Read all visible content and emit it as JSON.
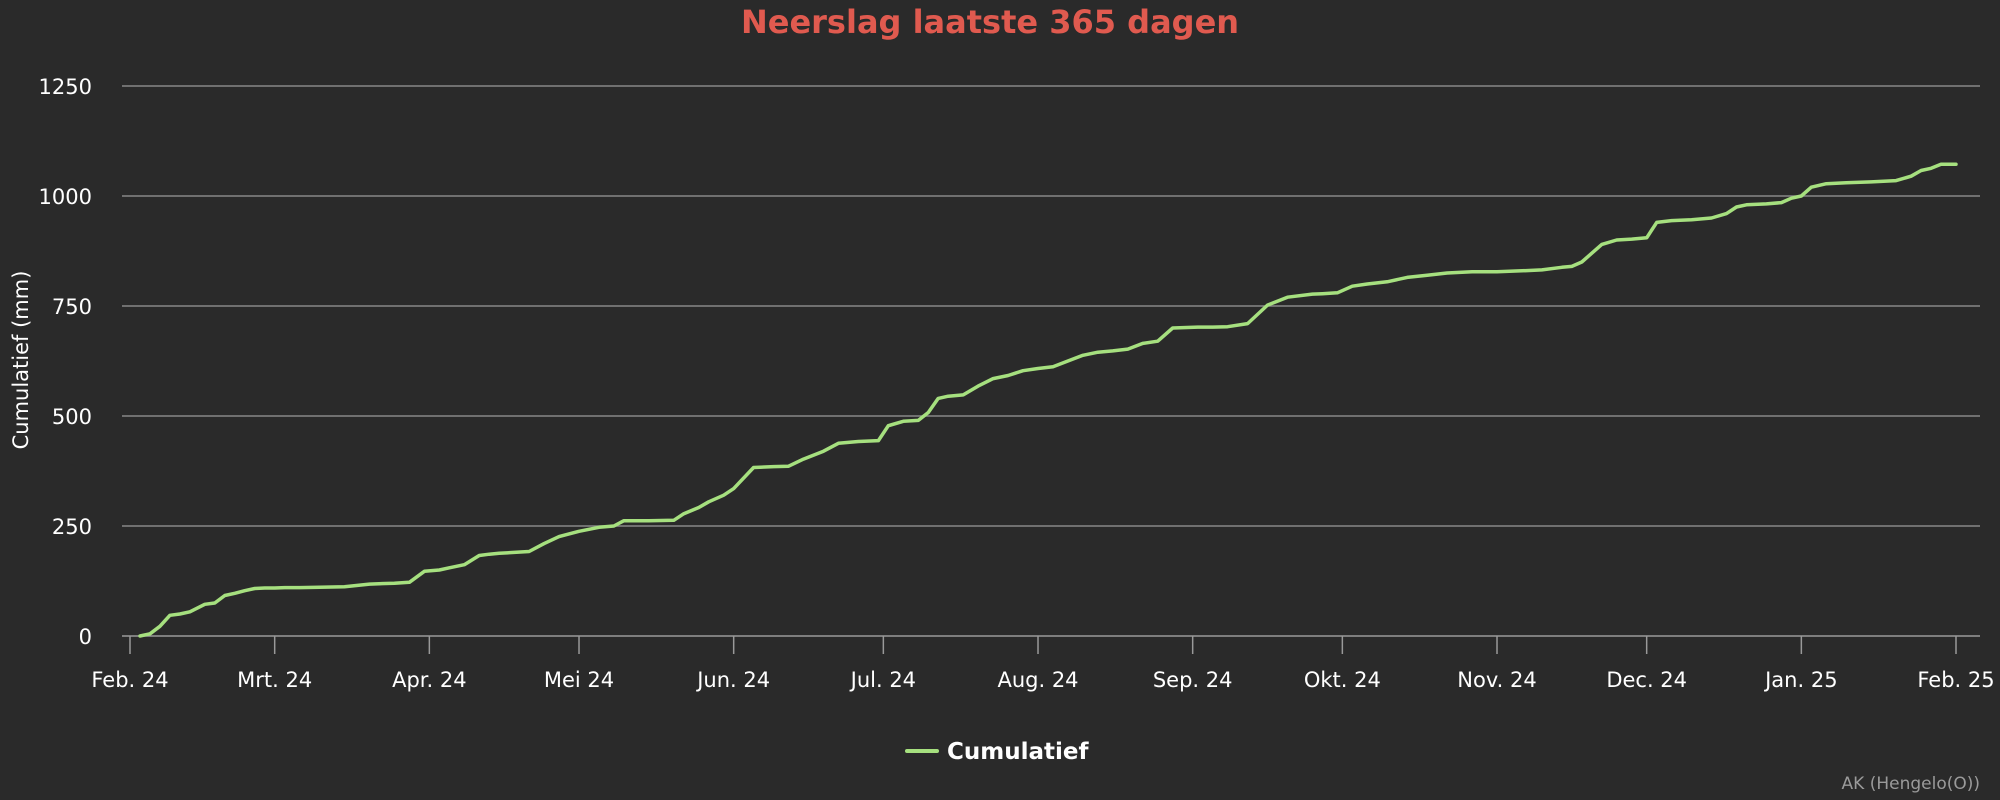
{
  "chart_data": {
    "type": "line",
    "title": "Neerslag laatste 365 dagen",
    "xlabel": "",
    "ylabel": "Cumulatief (mm)",
    "ylim": [
      0,
      1250
    ],
    "yticks": [
      0,
      250,
      500,
      750,
      1000,
      1250
    ],
    "xlim": [
      "2024-02-01",
      "2025-02-01"
    ],
    "xticks": [
      {
        "date": "2024-02-01",
        "label": "Feb. 24"
      },
      {
        "date": "2024-03-01",
        "label": "Mrt. 24"
      },
      {
        "date": "2024-04-01",
        "label": "Apr. 24"
      },
      {
        "date": "2024-05-01",
        "label": "Mei 24"
      },
      {
        "date": "2024-06-01",
        "label": "Jun. 24"
      },
      {
        "date": "2024-07-01",
        "label": "Jul. 24"
      },
      {
        "date": "2024-08-01",
        "label": "Aug. 24"
      },
      {
        "date": "2024-09-01",
        "label": "Sep. 24"
      },
      {
        "date": "2024-10-01",
        "label": "Okt. 24"
      },
      {
        "date": "2024-11-01",
        "label": "Nov. 24"
      },
      {
        "date": "2024-12-01",
        "label": "Dec. 24"
      },
      {
        "date": "2025-01-01",
        "label": "Jan. 25"
      },
      {
        "date": "2025-02-01",
        "label": "Feb. 25"
      }
    ],
    "grid": true,
    "legend_position": "bottom-center",
    "series": [
      {
        "name": "Cumulatief",
        "color": "#a6e07f",
        "x": [
          "2024-02-03",
          "2024-02-05",
          "2024-02-07",
          "2024-02-09",
          "2024-02-11",
          "2024-02-13",
          "2024-02-16",
          "2024-02-18",
          "2024-02-20",
          "2024-02-22",
          "2024-02-24",
          "2024-02-26",
          "2024-02-28",
          "2024-03-01",
          "2024-03-03",
          "2024-03-06",
          "2024-03-10",
          "2024-03-15",
          "2024-03-20",
          "2024-03-25",
          "2024-03-28",
          "2024-03-31",
          "2024-04-03",
          "2024-04-05",
          "2024-04-08",
          "2024-04-11",
          "2024-04-13",
          "2024-04-15",
          "2024-04-18",
          "2024-04-21",
          "2024-04-24",
          "2024-04-27",
          "2024-04-29",
          "2024-05-01",
          "2024-05-05",
          "2024-05-08",
          "2024-05-10",
          "2024-05-15",
          "2024-05-20",
          "2024-05-22",
          "2024-05-25",
          "2024-05-27",
          "2024-05-30",
          "2024-06-01",
          "2024-06-05",
          "2024-06-09",
          "2024-06-12",
          "2024-06-15",
          "2024-06-19",
          "2024-06-22",
          "2024-06-26",
          "2024-06-30",
          "2024-07-02",
          "2024-07-05",
          "2024-07-08",
          "2024-07-10",
          "2024-07-12",
          "2024-07-14",
          "2024-07-17",
          "2024-07-20",
          "2024-07-23",
          "2024-07-26",
          "2024-07-29",
          "2024-08-01",
          "2024-08-04",
          "2024-08-07",
          "2024-08-10",
          "2024-08-13",
          "2024-08-16",
          "2024-08-19",
          "2024-08-22",
          "2024-08-25",
          "2024-08-28",
          "2024-09-02",
          "2024-09-05",
          "2024-09-08",
          "2024-09-12",
          "2024-09-16",
          "2024-09-20",
          "2024-09-25",
          "2024-09-27",
          "2024-09-30",
          "2024-10-03",
          "2024-10-06",
          "2024-10-10",
          "2024-10-14",
          "2024-10-18",
          "2024-10-22",
          "2024-10-27",
          "2024-11-01",
          "2024-11-06",
          "2024-11-10",
          "2024-11-14",
          "2024-11-16",
          "2024-11-18",
          "2024-11-20",
          "2024-11-22",
          "2024-11-25",
          "2024-11-28",
          "2024-12-01",
          "2024-12-03",
          "2024-12-06",
          "2024-12-10",
          "2024-12-14",
          "2024-12-17",
          "2024-12-19",
          "2024-12-21",
          "2024-12-25",
          "2024-12-28",
          "2024-12-30",
          "2025-01-01",
          "2025-01-03",
          "2025-01-06",
          "2025-01-10",
          "2025-01-15",
          "2025-01-20",
          "2025-01-23",
          "2025-01-25",
          "2025-01-27",
          "2025-01-29",
          "2025-02-01"
        ],
        "values": [
          0,
          5,
          22,
          47,
          50,
          55,
          72,
          75,
          92,
          97,
          103,
          108,
          109,
          109,
          110,
          110,
          111,
          112,
          118,
          120,
          122,
          147,
          150,
          155,
          162,
          183,
          186,
          188,
          190,
          192,
          210,
          226,
          232,
          238,
          247,
          250,
          262,
          262,
          263,
          278,
          292,
          305,
          320,
          335,
          383,
          385,
          386,
          402,
          420,
          438,
          442,
          444,
          478,
          488,
          490,
          508,
          540,
          545,
          548,
          568,
          585,
          592,
          603,
          608,
          612,
          625,
          638,
          645,
          648,
          652,
          665,
          670,
          700,
          702,
          702,
          703,
          710,
          752,
          770,
          777,
          778,
          780,
          795,
          800,
          805,
          815,
          820,
          825,
          828,
          828,
          830,
          832,
          838,
          840,
          850,
          870,
          890,
          900,
          902,
          905,
          940,
          944,
          946,
          950,
          960,
          975,
          980,
          982,
          985,
          995,
          1000,
          1020,
          1028,
          1030,
          1032,
          1035,
          1045,
          1058,
          1063,
          1072,
          1072
        ]
      }
    ]
  },
  "credit": "AK (Hengelo(O))"
}
